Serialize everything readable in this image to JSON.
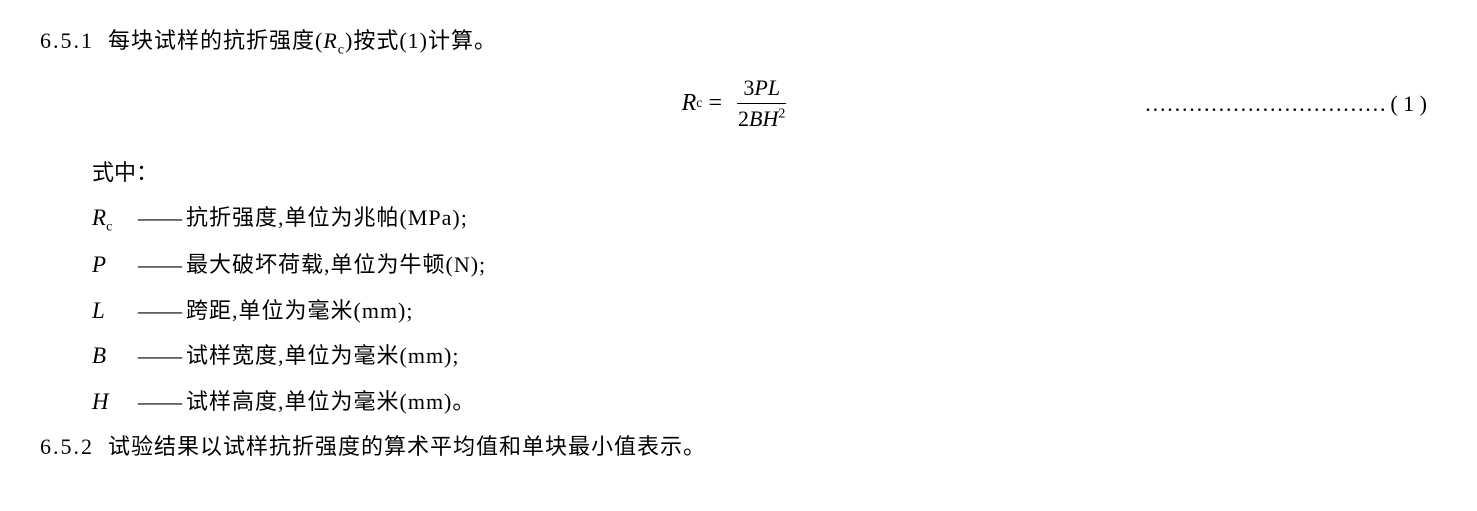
{
  "section1": {
    "number": "6.5.1",
    "text_pre": "每块试样的抗折强度(",
    "var": "R",
    "sub": "c",
    "text_post": ")按式(1)计算。"
  },
  "equation": {
    "lhs_var": "R",
    "lhs_sub": "c",
    "eq": "=",
    "num_coef": "3",
    "num_var1": "P",
    "num_var2": "L",
    "den_coef": "2",
    "den_var1": "B",
    "den_var2": "H",
    "den_exp": "2",
    "dots": "……………………………",
    "ref": "( 1 )"
  },
  "where": "式中：",
  "defs": [
    {
      "sym": "R",
      "sub": "c",
      "dash": "——",
      "text": "抗折强度,单位为兆帕(MPa);"
    },
    {
      "sym": "P",
      "sub": "",
      "dash": "——",
      "text": "最大破坏荷载,单位为牛顿(N);"
    },
    {
      "sym": "L",
      "sub": "",
      "dash": "——",
      "text": "跨距,单位为毫米(mm);"
    },
    {
      "sym": "B",
      "sub": "",
      "dash": "——",
      "text": "试样宽度,单位为毫米(mm);"
    },
    {
      "sym": "H",
      "sub": "",
      "dash": "——",
      "text": "试样高度,单位为毫米(mm)。"
    }
  ],
  "section2": {
    "number": "6.5.2",
    "text": "试验结果以试样抗折强度的算术平均值和单块最小值表示。"
  }
}
